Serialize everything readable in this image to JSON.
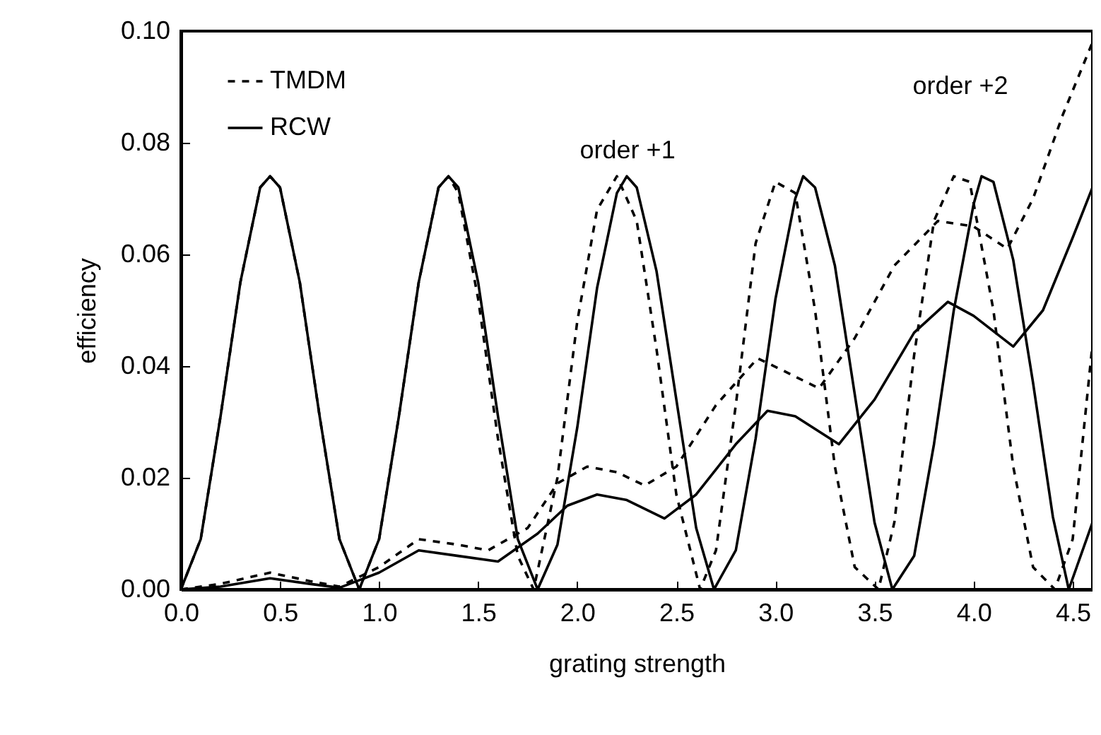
{
  "chart_data": {
    "type": "line",
    "xlabel": "grating strength",
    "ylabel": "efficiency",
    "xlim": [
      0,
      4.6
    ],
    "ylim": [
      0,
      0.1
    ],
    "xticks": [
      {
        "value": 0,
        "label": "0.0"
      },
      {
        "value": 0.5,
        "label": "0.5"
      },
      {
        "value": 1,
        "label": "1.0"
      },
      {
        "value": 1.5,
        "label": "1.5"
      },
      {
        "value": 2,
        "label": "2.0"
      },
      {
        "value": 2.5,
        "label": "2.5"
      },
      {
        "value": 3,
        "label": "3.0"
      },
      {
        "value": 3.5,
        "label": "3.5"
      },
      {
        "value": 4,
        "label": "4.0"
      },
      {
        "value": 4.5,
        "label": "4.5"
      }
    ],
    "yticks": [
      {
        "value": 0,
        "label": "0.00"
      },
      {
        "value": 0.02,
        "label": "0.02"
      },
      {
        "value": 0.04,
        "label": "0.04"
      },
      {
        "value": 0.06,
        "label": "0.06"
      },
      {
        "value": 0.08,
        "label": "0.08"
      },
      {
        "value": 0.1,
        "label": "0.10"
      }
    ],
    "legend": "top left",
    "marker": "none",
    "annotations": [
      "order +1",
      "order +2"
    ],
    "series": [
      {
        "name": "TMDM",
        "color": "#000000",
        "line_style": "dashed",
        "x": [
          0,
          0.1,
          0.2,
          0.3,
          0.4,
          0.45,
          0.5,
          0.6,
          0.7,
          0.8,
          0.9,
          1.0,
          1.1,
          1.2,
          1.3,
          1.35,
          1.4,
          1.5,
          1.6,
          1.7,
          1.78,
          1.9,
          2.0,
          2.1,
          2.2,
          2.3,
          2.4,
          2.5,
          2.62,
          2.7,
          2.8,
          2.9,
          3.0,
          3.1,
          3.2,
          3.3,
          3.4,
          3.52,
          3.6,
          3.7,
          3.8,
          3.9,
          3.98,
          4.1,
          4.2,
          4.3,
          4.41,
          4.5,
          4.6
        ],
        "values": [
          0,
          0.009,
          0.031,
          0.055,
          0.072,
          0.074,
          0.072,
          0.055,
          0.031,
          0.009,
          0,
          0.009,
          0.031,
          0.055,
          0.072,
          0.074,
          0.071,
          0.052,
          0.027,
          0.006,
          0,
          0.02,
          0.048,
          0.068,
          0.074,
          0.066,
          0.043,
          0.017,
          0,
          0.007,
          0.033,
          0.062,
          0.073,
          0.071,
          0.05,
          0.022,
          0.004,
          0,
          0.012,
          0.042,
          0.066,
          0.074,
          0.073,
          0.05,
          0.022,
          0.004,
          0,
          0.009,
          0.044
        ]
      },
      {
        "name": "RCW",
        "color": "#000000",
        "line_style": "solid",
        "x": [
          0,
          0.1,
          0.2,
          0.3,
          0.4,
          0.45,
          0.5,
          0.6,
          0.7,
          0.8,
          0.9,
          1.0,
          1.1,
          1.2,
          1.3,
          1.35,
          1.4,
          1.5,
          1.6,
          1.7,
          1.8,
          1.9,
          2.0,
          2.1,
          2.2,
          2.25,
          2.3,
          2.4,
          2.5,
          2.6,
          2.69,
          2.8,
          2.9,
          3.0,
          3.1,
          3.14,
          3.2,
          3.3,
          3.4,
          3.5,
          3.59,
          3.7,
          3.8,
          3.9,
          4.0,
          4.04,
          4.1,
          4.2,
          4.3,
          4.4,
          4.48,
          4.6
        ],
        "values": [
          0,
          0.009,
          0.031,
          0.055,
          0.072,
          0.074,
          0.072,
          0.055,
          0.031,
          0.009,
          0,
          0.009,
          0.031,
          0.055,
          0.072,
          0.074,
          0.072,
          0.055,
          0.031,
          0.009,
          0,
          0.008,
          0.029,
          0.054,
          0.071,
          0.074,
          0.072,
          0.057,
          0.034,
          0.011,
          0,
          0.007,
          0.027,
          0.052,
          0.07,
          0.074,
          0.072,
          0.058,
          0.035,
          0.012,
          0,
          0.006,
          0.026,
          0.05,
          0.069,
          0.074,
          0.073,
          0.059,
          0.037,
          0.013,
          0,
          0.012
        ]
      },
      {
        "color": "#000000",
        "line_style": "dashed",
        "x": [
          0,
          0.2,
          0.45,
          0.65,
          0.8,
          1.0,
          1.2,
          1.4,
          1.55,
          1.75,
          1.9,
          2.05,
          2.2,
          2.34,
          2.5,
          2.7,
          2.91,
          3.05,
          3.22,
          3.4,
          3.6,
          3.82,
          4.0,
          4.17,
          4.3,
          4.45,
          4.6
        ],
        "values": [
          0,
          0.001,
          0.003,
          0.0015,
          0.0005,
          0.004,
          0.009,
          0.008,
          0.007,
          0.011,
          0.019,
          0.022,
          0.021,
          0.0186,
          0.022,
          0.033,
          0.0414,
          0.039,
          0.036,
          0.045,
          0.058,
          0.066,
          0.065,
          0.061,
          0.07,
          0.085,
          0.098
        ]
      },
      {
        "color": "#000000",
        "line_style": "solid",
        "x": [
          0,
          0.2,
          0.45,
          0.65,
          0.8,
          1.0,
          1.2,
          1.4,
          1.6,
          1.8,
          1.95,
          2.1,
          2.25,
          2.44,
          2.6,
          2.8,
          2.96,
          3.1,
          3.32,
          3.5,
          3.7,
          3.87,
          4.0,
          4.2,
          4.35,
          4.5,
          4.6
        ],
        "values": [
          0,
          0.0005,
          0.002,
          0.001,
          0.0003,
          0.003,
          0.007,
          0.006,
          0.005,
          0.01,
          0.015,
          0.017,
          0.016,
          0.0127,
          0.017,
          0.026,
          0.032,
          0.031,
          0.026,
          0.034,
          0.046,
          0.0515,
          0.049,
          0.0435,
          0.05,
          0.063,
          0.072
        ]
      }
    ]
  }
}
